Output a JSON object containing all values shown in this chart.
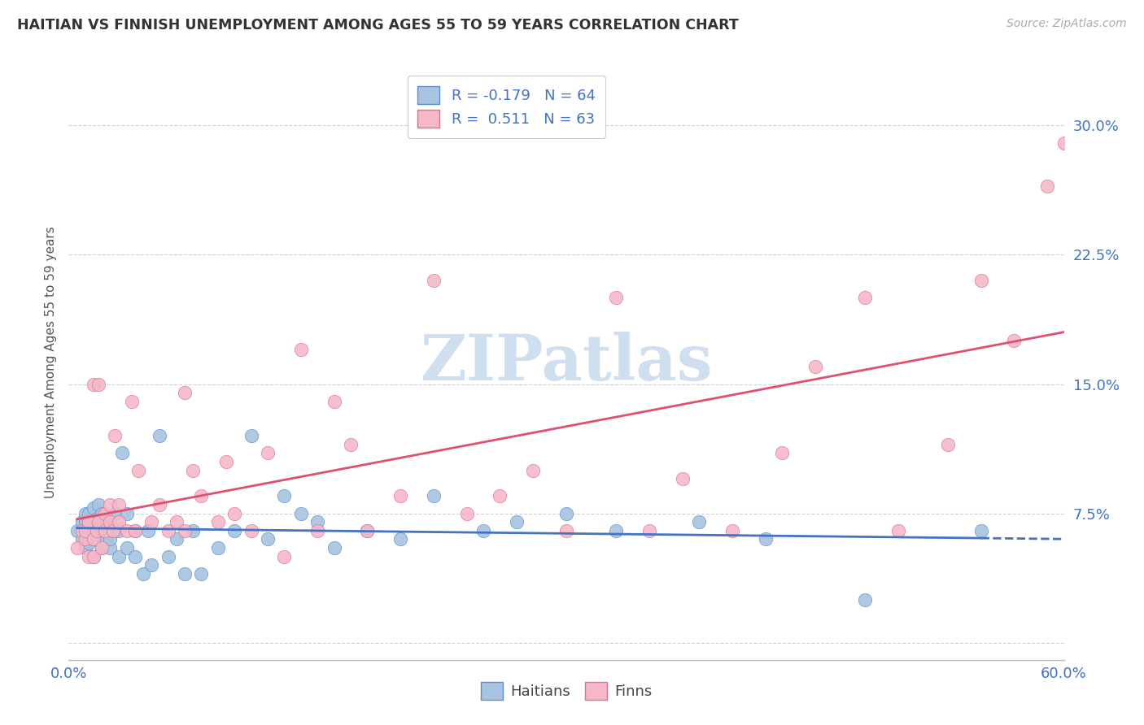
{
  "title": "HAITIAN VS FINNISH UNEMPLOYMENT AMONG AGES 55 TO 59 YEARS CORRELATION CHART",
  "source": "Source: ZipAtlas.com",
  "ylabel": "Unemployment Among Ages 55 to 59 years",
  "xlim": [
    0.0,
    0.6
  ],
  "ylim": [
    -0.01,
    0.335
  ],
  "yticks": [
    0.0,
    0.075,
    0.15,
    0.225,
    0.3
  ],
  "ytick_labels": [
    "",
    "7.5%",
    "15.0%",
    "22.5%",
    "30.0%"
  ],
  "xticks": [
    0.0,
    0.1,
    0.2,
    0.3,
    0.4,
    0.5,
    0.6
  ],
  "haitian_color": "#a8c4e0",
  "finn_color": "#f4b8c8",
  "haitian_edge_color": "#5b8fcc",
  "finn_edge_color": "#e07090",
  "haitian_line_color": "#4472c4",
  "finn_line_color": "#e05070",
  "background_color": "#ffffff",
  "grid_color": "#cccccc",
  "watermark_color": "#d0dff0",
  "title_color": "#333333",
  "source_color": "#aaaaaa",
  "ytick_color": "#4472c4",
  "xtick_color": "#4472c4",
  "legend_text_color": "#4472c4",
  "haitians_x": [
    0.005,
    0.008,
    0.008,
    0.01,
    0.01,
    0.01,
    0.01,
    0.012,
    0.012,
    0.012,
    0.015,
    0.015,
    0.015,
    0.015,
    0.015,
    0.017,
    0.017,
    0.018,
    0.018,
    0.02,
    0.02,
    0.02,
    0.022,
    0.022,
    0.025,
    0.025,
    0.025,
    0.027,
    0.028,
    0.03,
    0.03,
    0.032,
    0.035,
    0.035,
    0.04,
    0.04,
    0.045,
    0.048,
    0.05,
    0.055,
    0.06,
    0.065,
    0.07,
    0.075,
    0.08,
    0.09,
    0.1,
    0.11,
    0.12,
    0.13,
    0.14,
    0.15,
    0.16,
    0.18,
    0.2,
    0.22,
    0.25,
    0.27,
    0.3,
    0.33,
    0.38,
    0.42,
    0.48,
    0.55
  ],
  "haitians_y": [
    0.065,
    0.06,
    0.07,
    0.055,
    0.065,
    0.07,
    0.075,
    0.058,
    0.065,
    0.075,
    0.05,
    0.06,
    0.065,
    0.07,
    0.078,
    0.06,
    0.072,
    0.065,
    0.08,
    0.055,
    0.065,
    0.075,
    0.06,
    0.07,
    0.055,
    0.06,
    0.07,
    0.065,
    0.075,
    0.05,
    0.065,
    0.11,
    0.055,
    0.075,
    0.05,
    0.065,
    0.04,
    0.065,
    0.045,
    0.12,
    0.05,
    0.06,
    0.04,
    0.065,
    0.04,
    0.055,
    0.065,
    0.12,
    0.06,
    0.085,
    0.075,
    0.07,
    0.055,
    0.065,
    0.06,
    0.085,
    0.065,
    0.07,
    0.075,
    0.065,
    0.07,
    0.06,
    0.025,
    0.065
  ],
  "finns_x": [
    0.005,
    0.008,
    0.01,
    0.01,
    0.012,
    0.012,
    0.015,
    0.015,
    0.015,
    0.017,
    0.018,
    0.018,
    0.02,
    0.022,
    0.022,
    0.025,
    0.025,
    0.027,
    0.028,
    0.03,
    0.03,
    0.035,
    0.038,
    0.04,
    0.042,
    0.05,
    0.055,
    0.06,
    0.065,
    0.07,
    0.07,
    0.075,
    0.08,
    0.09,
    0.095,
    0.1,
    0.11,
    0.12,
    0.13,
    0.14,
    0.15,
    0.16,
    0.17,
    0.18,
    0.2,
    0.22,
    0.24,
    0.26,
    0.28,
    0.3,
    0.33,
    0.35,
    0.37,
    0.4,
    0.43,
    0.45,
    0.48,
    0.5,
    0.53,
    0.55,
    0.57,
    0.59,
    0.6
  ],
  "finns_y": [
    0.055,
    0.065,
    0.06,
    0.065,
    0.05,
    0.07,
    0.05,
    0.06,
    0.15,
    0.065,
    0.07,
    0.15,
    0.055,
    0.065,
    0.075,
    0.07,
    0.08,
    0.065,
    0.12,
    0.07,
    0.08,
    0.065,
    0.14,
    0.065,
    0.1,
    0.07,
    0.08,
    0.065,
    0.07,
    0.065,
    0.145,
    0.1,
    0.085,
    0.07,
    0.105,
    0.075,
    0.065,
    0.11,
    0.05,
    0.17,
    0.065,
    0.14,
    0.115,
    0.065,
    0.085,
    0.21,
    0.075,
    0.085,
    0.1,
    0.065,
    0.2,
    0.065,
    0.095,
    0.065,
    0.11,
    0.16,
    0.2,
    0.065,
    0.115,
    0.21,
    0.175,
    0.265,
    0.29
  ]
}
